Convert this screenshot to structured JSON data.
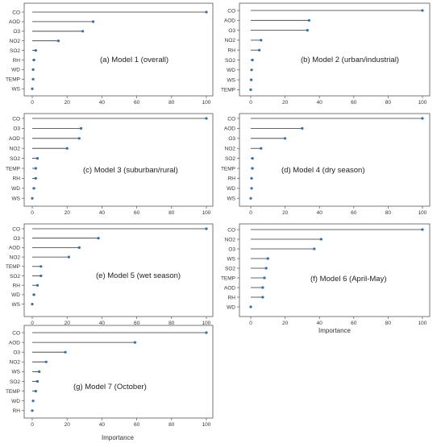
{
  "colors": {
    "marker": "#2f6fb5",
    "stem": "#333333",
    "frame": "#555555",
    "background": "#ffffff"
  },
  "chart_data": [
    {
      "type": "lollipop",
      "caption": "(a) Model 1 (overall)",
      "categories": [
        "CO",
        "AOD",
        "O3",
        "NO2",
        "SO2",
        "RH",
        "WD",
        "TEMP",
        "WS"
      ],
      "values": [
        100,
        35,
        29,
        15,
        2,
        1,
        0.5,
        0.5,
        0
      ],
      "x_ticks": [
        "0",
        "20",
        "40",
        "60",
        "80",
        "100"
      ],
      "xlim": [
        0,
        100
      ],
      "xlabel": ""
    },
    {
      "type": "lollipop",
      "caption": "(b) Model 2 (urban/industrial)",
      "categories": [
        "CO",
        "AOD",
        "O3",
        "NO2",
        "RH",
        "SO2",
        "WD",
        "WS",
        "TEMP"
      ],
      "values": [
        100,
        34,
        33,
        6,
        5,
        1,
        0.5,
        0.3,
        0
      ],
      "x_ticks": [
        "0",
        "20",
        "40",
        "60",
        "80",
        "100"
      ],
      "xlim": [
        0,
        100
      ],
      "xlabel": ""
    },
    {
      "type": "lollipop",
      "caption": "(c) Model 3 (suburban/rural)",
      "categories": [
        "CO",
        "O3",
        "AOD",
        "NO2",
        "SO2",
        "TEMP",
        "RH",
        "WD",
        "WS"
      ],
      "values": [
        100,
        28,
        27,
        20,
        3,
        2,
        2,
        1,
        0
      ],
      "x_ticks": [
        "0",
        "20",
        "40",
        "60",
        "80",
        "100"
      ],
      "xlim": [
        0,
        100
      ],
      "xlabel": ""
    },
    {
      "type": "lollipop",
      "caption": "(d) Model 4 (dry season)",
      "categories": [
        "CO",
        "AOD",
        "O3",
        "NO2",
        "SO2",
        "TEMP",
        "RH",
        "WD",
        "WS"
      ],
      "values": [
        100,
        30,
        20,
        6,
        1,
        1,
        0.5,
        0.5,
        0
      ],
      "x_ticks": [
        "0",
        "20",
        "40",
        "60",
        "80",
        "100"
      ],
      "xlim": [
        0,
        100
      ],
      "xlabel": ""
    },
    {
      "type": "lollipop",
      "caption": "(e) Model 5 (wet season)",
      "categories": [
        "CO",
        "O3",
        "AOD",
        "NO2",
        "TEMP",
        "SO2",
        "RH",
        "WD",
        "WS"
      ],
      "values": [
        100,
        38,
        27,
        21,
        5,
        5,
        3,
        1,
        0
      ],
      "x_ticks": [
        "0",
        "20",
        "40",
        "60",
        "80",
        "100"
      ],
      "xlim": [
        0,
        100
      ],
      "xlabel": ""
    },
    {
      "type": "lollipop",
      "caption": "(f) Model 6 (April-May)",
      "categories": [
        "CO",
        "NO2",
        "O3",
        "WS",
        "SO2",
        "TEMP",
        "AOD",
        "RH",
        "WD"
      ],
      "values": [
        100,
        41,
        37,
        10,
        9,
        8,
        7,
        7,
        0
      ],
      "x_ticks": [
        "0",
        "20",
        "40",
        "60",
        "80",
        "100"
      ],
      "xlim": [
        0,
        100
      ],
      "xlabel": "Importance"
    },
    {
      "type": "lollipop",
      "caption": "(g) Model 7 (October)",
      "categories": [
        "CO",
        "AOD",
        "O3",
        "NO2",
        "WS",
        "SO2",
        "TEMP",
        "WD",
        "RH"
      ],
      "values": [
        100,
        59,
        19,
        8,
        4,
        3,
        2,
        0.5,
        0
      ],
      "x_ticks": [
        "0",
        "20",
        "40",
        "60",
        "80",
        "100"
      ],
      "xlim": [
        0,
        100
      ],
      "xlabel": "Importance"
    }
  ]
}
